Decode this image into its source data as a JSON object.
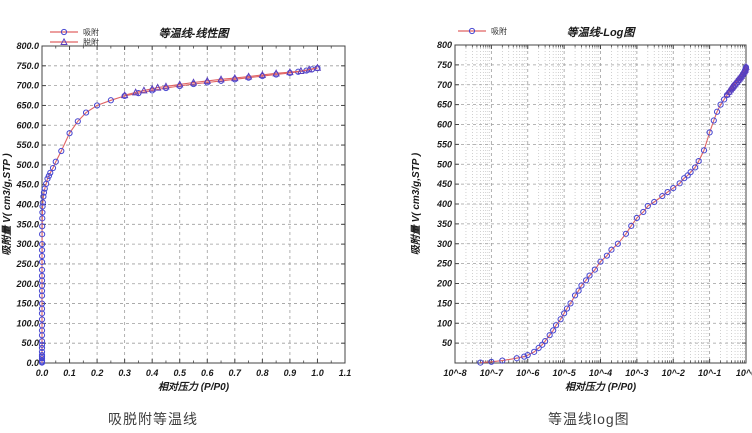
{
  "captions": {
    "linear": "吸脱附等温线",
    "log": "等温线log图"
  },
  "colors": {
    "curve_line": "#e06464",
    "adsorption_marker": "#4747d1",
    "desorption_marker": "#5a3fbe",
    "grid_major": "#9e9e9e",
    "grid_minor": "#bdbdbd",
    "axis": "#444444"
  },
  "chart_data": {
    "series": [
      {
        "key": "adsorption",
        "name": "吸附",
        "marker": "circle",
        "marker_color": "#4747d1",
        "line_color": "#e06464",
        "points": [
          [
            5e-08,
            1
          ],
          [
            1e-07,
            3
          ],
          [
            2e-07,
            6
          ],
          [
            5e-07,
            12
          ],
          [
            8e-07,
            16
          ],
          [
            1e-06,
            20
          ],
          [
            1.5e-06,
            28
          ],
          [
            2e-06,
            38
          ],
          [
            2.5e-06,
            46
          ],
          [
            3e-06,
            55
          ],
          [
            4e-06,
            70
          ],
          [
            5e-06,
            82
          ],
          [
            6e-06,
            95
          ],
          [
            8e-06,
            110
          ],
          [
            1e-05,
            125
          ],
          [
            1.2e-05,
            137
          ],
          [
            1.5e-05,
            150
          ],
          [
            2e-05,
            170
          ],
          [
            2.5e-05,
            182
          ],
          [
            3e-05,
            195
          ],
          [
            4e-05,
            208
          ],
          [
            5e-05,
            220
          ],
          [
            7e-05,
            235
          ],
          [
            0.0001,
            255
          ],
          [
            0.00015,
            270
          ],
          [
            0.0002,
            285
          ],
          [
            0.0003,
            300
          ],
          [
            0.0005,
            325
          ],
          [
            0.0007,
            345
          ],
          [
            0.001,
            365
          ],
          [
            0.0015,
            380
          ],
          [
            0.002,
            395
          ],
          [
            0.003,
            405
          ],
          [
            0.005,
            420
          ],
          [
            0.007,
            430
          ],
          [
            0.01,
            440
          ],
          [
            0.015,
            452
          ],
          [
            0.02,
            465
          ],
          [
            0.025,
            472
          ],
          [
            0.03,
            480
          ],
          [
            0.04,
            492
          ],
          [
            0.05,
            508
          ],
          [
            0.07,
            535
          ],
          [
            0.1,
            580
          ],
          [
            0.13,
            610
          ],
          [
            0.16,
            632
          ],
          [
            0.2,
            650
          ],
          [
            0.25,
            663
          ],
          [
            0.3,
            674
          ],
          [
            0.35,
            681
          ],
          [
            0.4,
            688
          ],
          [
            0.45,
            694
          ],
          [
            0.5,
            699
          ],
          [
            0.55,
            704
          ],
          [
            0.6,
            708
          ],
          [
            0.65,
            712
          ],
          [
            0.7,
            716
          ],
          [
            0.75,
            720
          ],
          [
            0.8,
            724
          ],
          [
            0.85,
            728
          ],
          [
            0.9,
            732
          ],
          [
            0.93,
            735
          ],
          [
            0.96,
            738
          ],
          [
            0.98,
            741
          ],
          [
            1.0,
            744
          ]
        ]
      },
      {
        "key": "desorption",
        "name": "脱附",
        "marker": "triangle",
        "marker_color": "#5a3fbe",
        "line_color": "#e06464",
        "points": [
          [
            0.3,
            676
          ],
          [
            0.34,
            683
          ],
          [
            0.37,
            688
          ],
          [
            0.4,
            692
          ],
          [
            0.42,
            695
          ],
          [
            0.45,
            698
          ],
          [
            0.5,
            703
          ],
          [
            0.55,
            708
          ],
          [
            0.6,
            712
          ],
          [
            0.65,
            716
          ],
          [
            0.7,
            719
          ],
          [
            0.75,
            723
          ],
          [
            0.8,
            727
          ],
          [
            0.85,
            731
          ],
          [
            0.9,
            734
          ],
          [
            0.94,
            737
          ],
          [
            0.97,
            741
          ],
          [
            1.0,
            745
          ]
        ]
      }
    ],
    "charts": [
      {
        "id": "linear",
        "type": "line",
        "title": "等温线-线性图",
        "xlabel": "相对压力 (P/P0)",
        "ylabel": "吸附量 V( cm3/g,STP )",
        "x_scale": "linear",
        "xlim": [
          0,
          1.1
        ],
        "ylim": [
          0,
          800
        ],
        "grid": true,
        "x_ticks": {
          "values": [
            0,
            0.1,
            0.2,
            0.3,
            0.4,
            0.5,
            0.6,
            0.7,
            0.8,
            0.9,
            1.0,
            1.1
          ],
          "labels": [
            "0.0",
            "0.1",
            "0.2",
            "0.3",
            "0.4",
            "0.5",
            "0.6",
            "0.7",
            "0.8",
            "0.9",
            "1.0",
            "1.1"
          ]
        },
        "y_ticks": {
          "values": [
            0,
            50,
            100,
            150,
            200,
            250,
            300,
            350,
            400,
            450,
            500,
            550,
            600,
            650,
            700,
            750,
            800
          ],
          "labels": [
            "0.0",
            "50.0",
            "100.0",
            "150.0",
            "200.0",
            "250.0",
            "300.0",
            "350.0",
            "400.0",
            "450.0",
            "500.0",
            "550.0",
            "600.0",
            "650.0",
            "700.0",
            "750.0",
            "800.0"
          ]
        },
        "series_keys": [
          "adsorption",
          "desorption"
        ],
        "legend": {
          "position": "top-left",
          "keys": [
            "adsorption",
            "desorption"
          ],
          "x": 50,
          "rows_y": [
            32,
            42
          ]
        },
        "plot": [
          42,
          46,
          345,
          363
        ],
        "ylabel_x": 10
      },
      {
        "id": "log",
        "type": "line",
        "title": "等温线-Log图",
        "xlabel": "相对压力 (P/P0)",
        "ylabel": "吸附量 V( cm3/g,STP )",
        "x_scale": "log",
        "xlim": [
          1e-08,
          1
        ],
        "ylim": [
          0,
          800
        ],
        "grid": true,
        "x_ticks": {
          "values": [
            -8,
            -7,
            -6,
            -5,
            -4,
            -3,
            -2,
            -1,
            0
          ],
          "labels": [
            "10^-8",
            "10^-7",
            "10^-6",
            "10^-5",
            "10^-4",
            "10^-3",
            "10^-2",
            "10^-1",
            "10^0"
          ]
        },
        "y_ticks": {
          "values": [
            50,
            100,
            150,
            200,
            250,
            300,
            350,
            400,
            450,
            500,
            550,
            600,
            650,
            700,
            750,
            800
          ],
          "labels": [
            "50",
            "100",
            "150",
            "200",
            "250",
            "300",
            "350",
            "400",
            "450",
            "500",
            "550",
            "600",
            "650",
            "700",
            "750",
            "800"
          ]
        },
        "series_keys": [
          "adsorption",
          "desorption"
        ],
        "legend": {
          "position": "top-left",
          "keys": [
            "adsorption"
          ],
          "x": 82,
          "rows_y": [
            31
          ]
        },
        "plot": [
          79,
          45,
          370,
          363
        ],
        "ylabel_x": 43
      }
    ]
  }
}
